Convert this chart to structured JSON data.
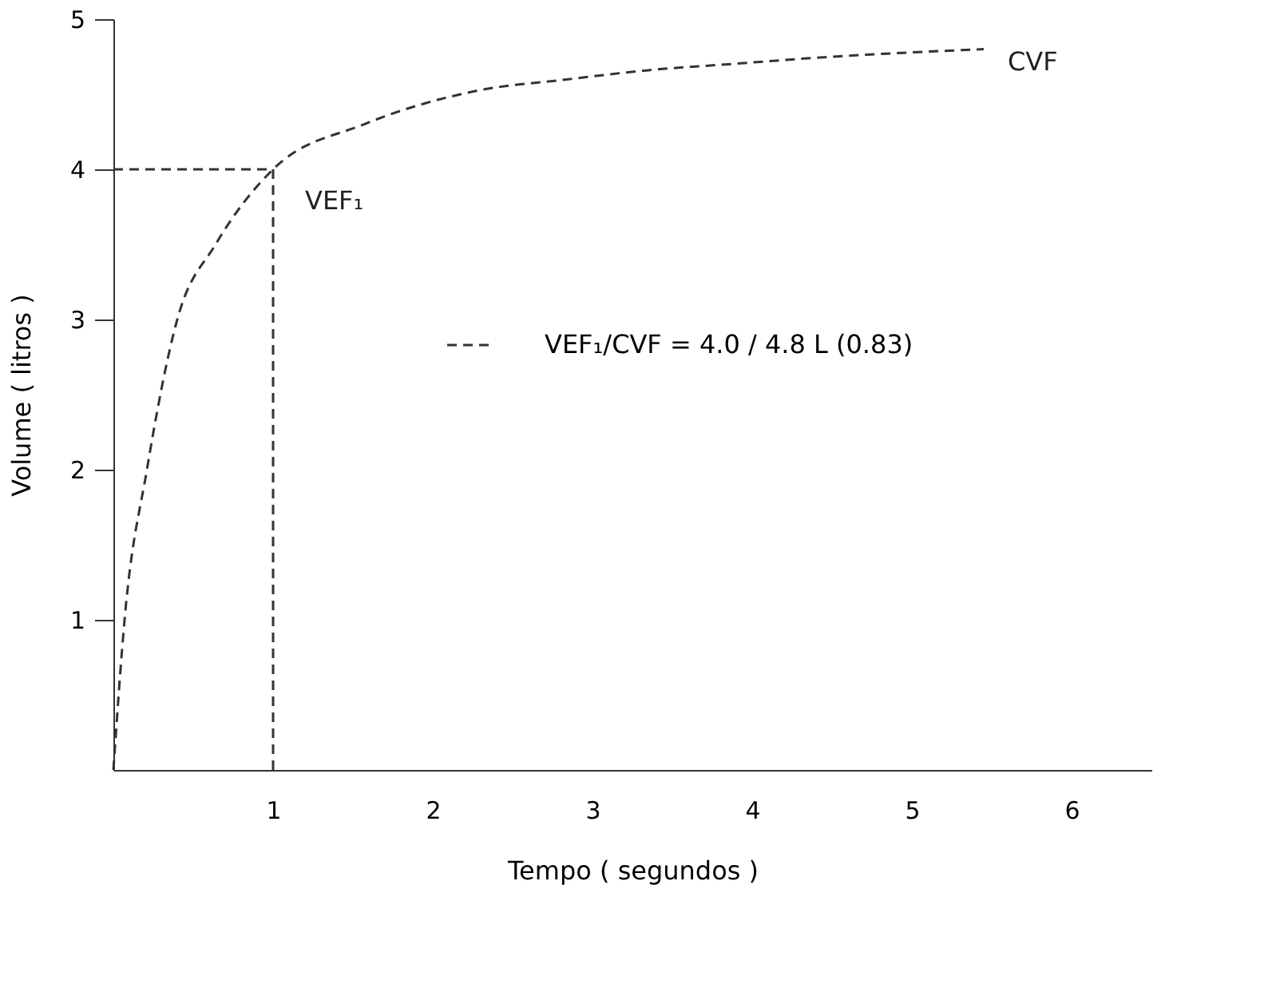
{
  "chart_data": {
    "type": "line",
    "xlabel": "Tempo ( segundos )",
    "ylabel": "Volume ( litros )",
    "xlim": [
      0,
      6.5
    ],
    "xticks": [
      1,
      2,
      3,
      4,
      5,
      6
    ],
    "ylim": [
      0,
      5
    ],
    "yticks": [
      1,
      2,
      3,
      4,
      5
    ],
    "grid": false,
    "legend": "right",
    "line_style": "dashed",
    "marker": "none",
    "series": [
      {
        "name": "VEF₁/CVF = 4.0 / 4.8 L (0.83)",
        "color": "#333333",
        "x": [
          0,
          0.07,
          0.21,
          0.4,
          0.64,
          1,
          1.57,
          2.26,
          2.85,
          3.35,
          3.85,
          4.5,
          5.45
        ],
        "values": [
          0,
          1,
          2,
          3,
          3.5,
          4,
          4.3,
          4.52,
          4.6,
          4.66,
          4.7,
          4.75,
          4.8
        ]
      },
      {
        "color": "#333333",
        "x": [
          0,
          1,
          1
        ],
        "values": [
          4,
          4,
          0
        ]
      }
    ],
    "annotations": [
      {
        "text": "VEF₁",
        "x": 1,
        "y": 4
      },
      {
        "text": "CVF",
        "x": 5.45,
        "y": 4.8
      }
    ]
  }
}
